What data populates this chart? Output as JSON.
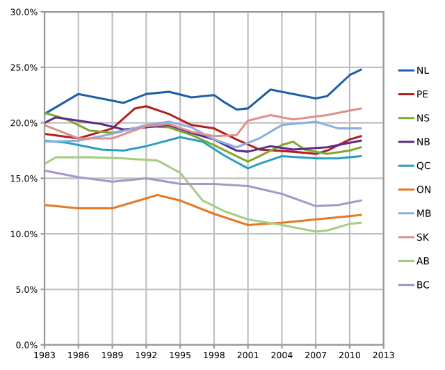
{
  "chart_data": {
    "type": "line",
    "xlim": [
      1983,
      2013
    ],
    "xticks": [
      1983,
      1986,
      1989,
      1992,
      1995,
      1998,
      2001,
      2004,
      2007,
      2010,
      2013
    ],
    "ylim": [
      0,
      30
    ],
    "yticks": [
      {
        "value": 0,
        "label": "0.0%"
      },
      {
        "value": 5,
        "label": "5.0%"
      },
      {
        "value": 10,
        "label": "10.0%"
      },
      {
        "value": 15,
        "label": "15.0%"
      },
      {
        "value": 20,
        "label": "20.0%"
      },
      {
        "value": 25,
        "label": "25.0%"
      },
      {
        "value": 30,
        "label": "30.0%"
      }
    ],
    "grid": true,
    "legend": "right",
    "marker": "none",
    "line_style": "solid",
    "series": [
      {
        "name": "NL",
        "color": "#1f5fa8",
        "x": [
          1983,
          1986,
          1989,
          1990,
          1992,
          1994,
          1996,
          1998,
          1999,
          2000,
          2001,
          2003,
          2004,
          2007,
          2008,
          2010,
          2011
        ],
        "values": [
          20.8,
          22.6,
          22.0,
          21.8,
          22.6,
          22.8,
          22.3,
          22.5,
          21.8,
          21.2,
          21.3,
          23.0,
          22.8,
          22.2,
          22.4,
          24.3,
          24.8
        ]
      },
      {
        "name": "PE",
        "color": "#b0201c",
        "x": [
          1983,
          1986,
          1989,
          1991,
          1992,
          1994,
          1996,
          1998,
          2000,
          2002,
          2005,
          2007,
          2008,
          2010,
          2011
        ],
        "values": [
          19.0,
          18.6,
          19.5,
          21.3,
          21.5,
          20.8,
          19.8,
          19.5,
          18.5,
          17.6,
          17.4,
          17.2,
          17.5,
          18.5,
          18.8
        ]
      },
      {
        "name": "NS",
        "color": "#7fa832",
        "x": [
          1983,
          1985,
          1987,
          1989,
          1992,
          1994,
          1996,
          1998,
          2000,
          2001,
          2002,
          2004,
          2005,
          2006,
          2008,
          2010,
          2011
        ],
        "values": [
          20.9,
          20.3,
          19.3,
          19.1,
          19.7,
          19.6,
          18.9,
          18.0,
          17.0,
          16.5,
          17.0,
          18.0,
          18.3,
          17.6,
          17.2,
          17.5,
          17.8
        ]
      },
      {
        "name": "NB",
        "color": "#5a2d8a",
        "x": [
          1983,
          1984,
          1986,
          1988,
          1990,
          1992,
          1994,
          1996,
          1998,
          2000,
          2001,
          2003,
          2005,
          2008,
          2010,
          2011
        ],
        "values": [
          20.0,
          20.5,
          20.2,
          19.9,
          19.4,
          19.6,
          19.8,
          19.1,
          18.5,
          17.5,
          17.4,
          17.9,
          17.6,
          17.8,
          18.2,
          18.4
        ]
      },
      {
        "name": "QC",
        "color": "#2aa0be",
        "x": [
          1983,
          1985,
          1988,
          1990,
          1992,
          1995,
          1997,
          1999,
          2001,
          2002,
          2004,
          2007,
          2009,
          2011
        ],
        "values": [
          18.4,
          18.2,
          17.6,
          17.5,
          17.9,
          18.7,
          18.3,
          17.0,
          15.9,
          16.3,
          17.0,
          16.8,
          16.8,
          17.0
        ]
      },
      {
        "name": "ON",
        "color": "#e87722",
        "x": [
          1983,
          1986,
          1989,
          1991,
          1993,
          1995,
          1998,
          2001,
          2004,
          2007,
          2010,
          2011
        ],
        "values": [
          12.6,
          12.3,
          12.3,
          12.9,
          13.5,
          13.0,
          11.8,
          10.8,
          11.0,
          11.3,
          11.6,
          11.7
        ]
      },
      {
        "name": "MB",
        "color": "#8eaee0",
        "x": [
          1983,
          1986,
          1989,
          1992,
          1994,
          1996,
          1998,
          2000,
          2002,
          2004,
          2007,
          2009,
          2011
        ],
        "values": [
          18.3,
          18.4,
          19.0,
          19.8,
          20.1,
          19.6,
          18.5,
          17.8,
          18.6,
          19.8,
          20.1,
          19.5,
          19.5
        ]
      },
      {
        "name": "SK",
        "color": "#e0908c",
        "x": [
          1983,
          1986,
          1989,
          1992,
          1994,
          1996,
          1998,
          2000,
          2001,
          2003,
          2004,
          2005,
          2008,
          2011
        ],
        "values": [
          19.8,
          18.6,
          18.6,
          19.7,
          19.9,
          19.2,
          18.8,
          18.9,
          20.2,
          20.7,
          20.5,
          20.3,
          20.7,
          21.3
        ]
      },
      {
        "name": "AB",
        "color": "#a8cc84",
        "x": [
          1983,
          1984,
          1987,
          1990,
          1993,
          1995,
          1997,
          1999,
          2001,
          2004,
          2007,
          2008,
          2010,
          2011
        ],
        "values": [
          16.3,
          16.9,
          16.9,
          16.8,
          16.6,
          15.5,
          13.0,
          12.0,
          11.3,
          10.8,
          10.2,
          10.3,
          10.9,
          11.0
        ]
      },
      {
        "name": "BC",
        "color": "#a996c8",
        "x": [
          1983,
          1986,
          1989,
          1992,
          1995,
          1998,
          2001,
          2004,
          2007,
          2009,
          2011
        ],
        "values": [
          15.7,
          15.1,
          14.7,
          15.0,
          14.5,
          14.5,
          14.3,
          13.6,
          12.5,
          12.6,
          13.0
        ]
      }
    ]
  }
}
